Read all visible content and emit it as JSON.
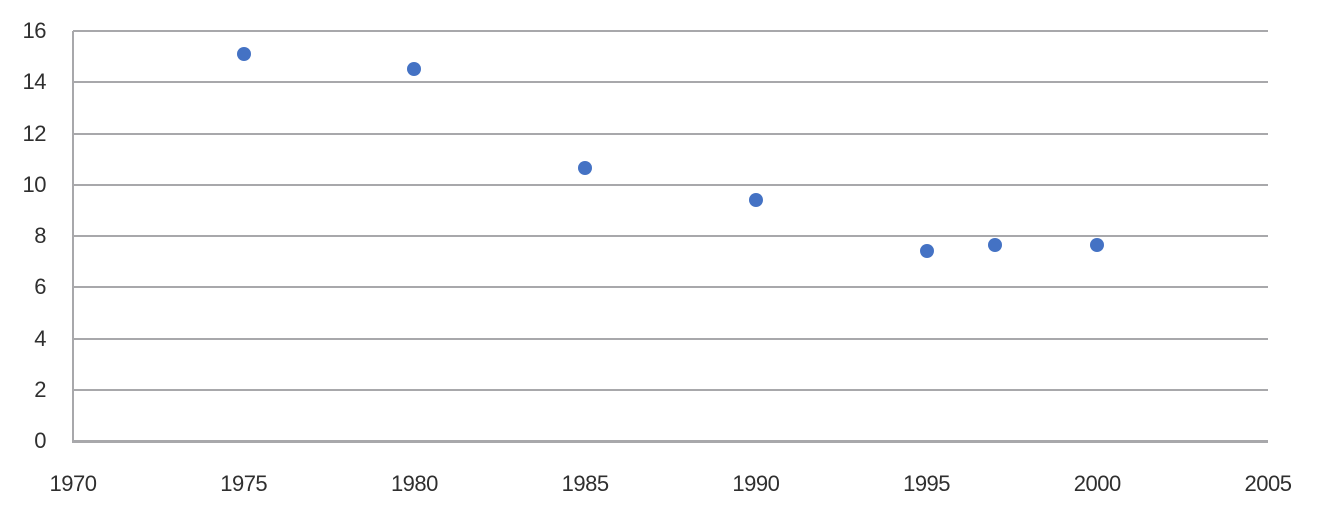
{
  "chart_data": {
    "type": "scatter",
    "title": "",
    "xlabel": "",
    "ylabel": "",
    "points": [
      {
        "x": 1975,
        "y": 15.1
      },
      {
        "x": 1980,
        "y": 14.5
      },
      {
        "x": 1985,
        "y": 10.65
      },
      {
        "x": 1990,
        "y": 9.4
      },
      {
        "x": 1995,
        "y": 7.4
      },
      {
        "x": 1997,
        "y": 7.65
      },
      {
        "x": 2000,
        "y": 7.65
      }
    ],
    "xlim": [
      1970,
      2005
    ],
    "ylim": [
      0,
      16
    ],
    "x_ticks": [
      "1970",
      "1975",
      "1980",
      "1985",
      "1990",
      "1995",
      "2000",
      "2005"
    ],
    "y_ticks": [
      "0",
      "2",
      "4",
      "6",
      "8",
      "10",
      "12",
      "14",
      "16"
    ],
    "grid": "horizontal-only",
    "legend": "none",
    "colors": {
      "marker": "#4472c4",
      "gridline": "#a8a8ab",
      "axis_line": "#a8a8ab",
      "tick_label": "#2f2f2f",
      "background": "#ffffff"
    }
  }
}
